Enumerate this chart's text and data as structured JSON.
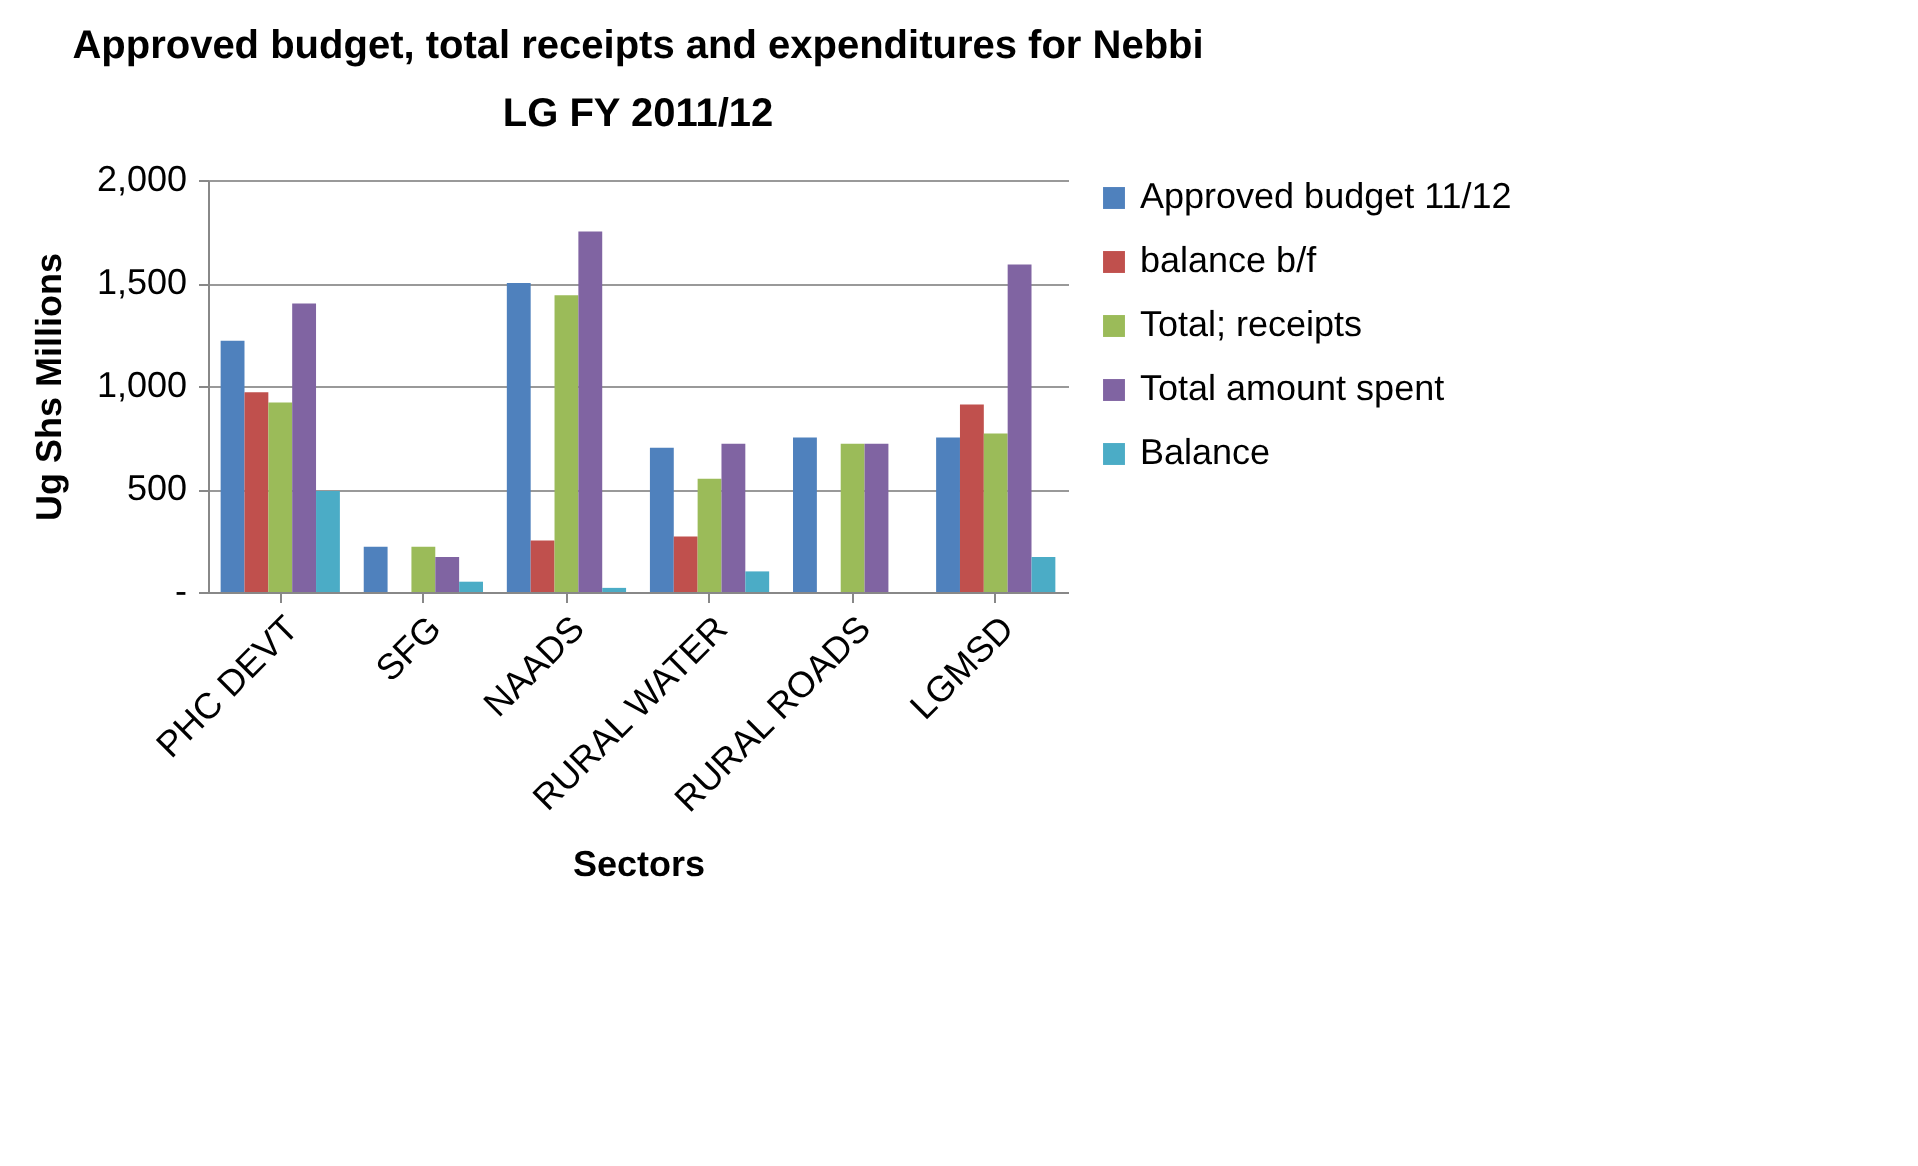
{
  "chart_data": {
    "type": "bar",
    "title": "Approved budget, total receipts and expenditures for Nebbi\nLG             FY 2011/12",
    "xlabel": "Sectors",
    "ylabel": "Ug Shs Millions",
    "categories": [
      "PHC DEVT",
      "SFG",
      "NAADS",
      "RURAL WATER",
      "RURAL ROADS",
      "LGMSD"
    ],
    "series": [
      {
        "name": "Approved budget 11/12",
        "color": "#4f81bd",
        "values": [
          1220,
          220,
          1500,
          700,
          750,
          750
        ]
      },
      {
        "name": "balance b/f",
        "color": "#c0504d",
        "values": [
          970,
          null,
          250,
          270,
          null,
          910
        ]
      },
      {
        "name": "Total; receipts",
        "color": "#9bbb59",
        "values": [
          920,
          220,
          1440,
          550,
          720,
          770
        ]
      },
      {
        "name": "Total amount spent",
        "color": "#8064a2",
        "values": [
          1400,
          170,
          1750,
          720,
          720,
          1590
        ]
      },
      {
        "name": "Balance",
        "color": "#4bacc6",
        "values": [
          490,
          50,
          20,
          100,
          null,
          170
        ]
      }
    ],
    "ylim": [
      0,
      2000
    ],
    "yticks": [
      {
        "value": 0,
        "label": "-"
      },
      {
        "value": 500,
        "label": "500"
      },
      {
        "value": 1000,
        "label": "1,000"
      },
      {
        "value": 1500,
        "label": "1,500"
      },
      {
        "value": 2000,
        "label": "2,000"
      }
    ],
    "grid": "y",
    "legend": "right"
  }
}
